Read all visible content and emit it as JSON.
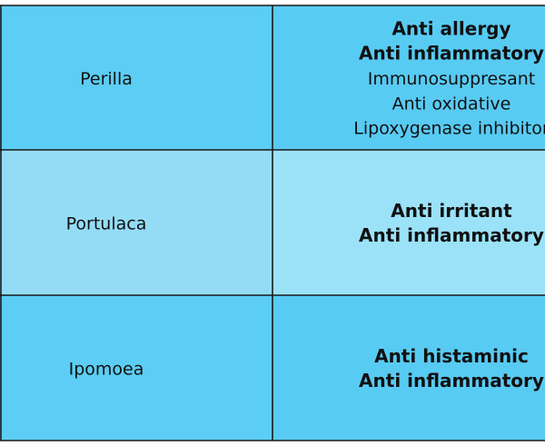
{
  "table": {
    "rows": [
      {
        "name": "Perilla",
        "effects": [
          {
            "text": "Anti allergy",
            "bold": true
          },
          {
            "text": "Anti inflammatory",
            "bold": true
          },
          {
            "text": "Immunosuppresant",
            "bold": false
          },
          {
            "text": "Anti oxidative",
            "bold": false
          },
          {
            "text": "Lipoxygenase inhibitor",
            "bold": false
          }
        ]
      },
      {
        "name": "Portulaca",
        "effects": [
          {
            "text": "Anti irritant",
            "bold": true
          },
          {
            "text": "Anti inflammatory",
            "bold": true
          }
        ]
      },
      {
        "name": "Ipomoea",
        "effects": [
          {
            "text": "Anti histaminic",
            "bold": true
          },
          {
            "text": "Anti inflammatory",
            "bold": true
          }
        ]
      }
    ]
  }
}
